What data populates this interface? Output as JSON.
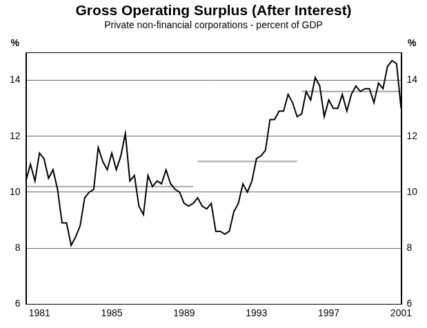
{
  "chart_data": {
    "type": "line",
    "title": "Gross Operating Surplus (After Interest)",
    "subtitle": "Private non-financial corporations - percent of GDP",
    "ylabel": "%",
    "y2label": "%",
    "categories": [
      null,
      null,
      null,
      "1981",
      null,
      null,
      null,
      null,
      null,
      null,
      null,
      null,
      null,
      null,
      null,
      null,
      null,
      null,
      null,
      "1985",
      null,
      null,
      null,
      null,
      null,
      null,
      null,
      null,
      null,
      null,
      null,
      null,
      null,
      null,
      null,
      "1989",
      null,
      null,
      null,
      null,
      null,
      null,
      null,
      null,
      null,
      null,
      null,
      null,
      null,
      null,
      null,
      "1993",
      null,
      null,
      null,
      null,
      null,
      null,
      null,
      null,
      null,
      null,
      null,
      null,
      null,
      null,
      null,
      "1997",
      null,
      null,
      null,
      null,
      null,
      null,
      null,
      null,
      null,
      null,
      null,
      null,
      null,
      null,
      null,
      "2001"
    ],
    "series": [
      {
        "color": "#000000",
        "line_style": "solid",
        "values": [
          10.4,
          11.0,
          10.4,
          11.4,
          11.2,
          10.5,
          10.8,
          10.1,
          8.9,
          8.9,
          8.1,
          8.4,
          8.8,
          9.8,
          10.0,
          10.1,
          11.6,
          11.1,
          10.8,
          11.4,
          10.8,
          11.3,
          12.1,
          10.4,
          10.6,
          9.5,
          9.2,
          10.6,
          10.2,
          10.4,
          10.3,
          10.8,
          10.3,
          10.1,
          10.0,
          9.6,
          9.5,
          9.6,
          9.8,
          9.5,
          9.4,
          9.6,
          8.6,
          8.6,
          8.5,
          8.6,
          9.3,
          9.6,
          10.3,
          10.0,
          10.4,
          11.2,
          11.3,
          11.5,
          12.6,
          12.6,
          12.9,
          12.9,
          13.5,
          13.2,
          12.7,
          12.8,
          13.6,
          13.3,
          14.1,
          13.8,
          12.7,
          13.3,
          13.0,
          13.0,
          13.5,
          12.9,
          13.5,
          13.8,
          13.6,
          13.7,
          13.7,
          13.2,
          13.9,
          13.7,
          14.5,
          14.7,
          14.6,
          13.0
        ]
      },
      {
        "color": "#a6a6a6",
        "line_style": "solid",
        "values": [
          10.2,
          10.2,
          10.2,
          10.2,
          10.2,
          10.2,
          10.2,
          10.2,
          10.2,
          10.2,
          10.2,
          10.2,
          10.2,
          10.2,
          10.2,
          10.2,
          10.2,
          10.2,
          10.2,
          10.2,
          10.2,
          10.2,
          10.2,
          10.2,
          10.2,
          10.2,
          10.2,
          10.2,
          10.2,
          10.2,
          10.2,
          10.2,
          10.2,
          10.2,
          10.2,
          10.2,
          10.2,
          10.2,
          null,
          null,
          null,
          null,
          null,
          null,
          null,
          null,
          null,
          null,
          null,
          null,
          null,
          null,
          null,
          null,
          null,
          null,
          null,
          null,
          null,
          null,
          null,
          null,
          null,
          null,
          null,
          null,
          null,
          null,
          null,
          null,
          null,
          null,
          null,
          null,
          null,
          null,
          null,
          null,
          null,
          null,
          null,
          null,
          null,
          null
        ]
      },
      {
        "color": "#a6a6a6",
        "line_style": "solid",
        "values": [
          null,
          null,
          null,
          null,
          null,
          null,
          null,
          null,
          null,
          null,
          null,
          null,
          null,
          null,
          null,
          null,
          null,
          null,
          null,
          null,
          null,
          null,
          null,
          null,
          null,
          null,
          null,
          null,
          null,
          null,
          null,
          null,
          null,
          null,
          null,
          null,
          null,
          null,
          11.1,
          11.1,
          11.1,
          11.1,
          11.1,
          11.1,
          11.1,
          11.1,
          11.1,
          11.1,
          11.1,
          11.1,
          11.1,
          11.1,
          11.1,
          11.1,
          11.1,
          11.1,
          11.1,
          11.1,
          11.1,
          11.1,
          11.1,
          null,
          null,
          null,
          null,
          null,
          null,
          null,
          null,
          null,
          null,
          null,
          null,
          null,
          null,
          null,
          null,
          null,
          null,
          null,
          null,
          null,
          null,
          null
        ]
      },
      {
        "color": "#a6a6a6",
        "line_style": "solid",
        "values": [
          null,
          null,
          null,
          null,
          null,
          null,
          null,
          null,
          null,
          null,
          null,
          null,
          null,
          null,
          null,
          null,
          null,
          null,
          null,
          null,
          null,
          null,
          null,
          null,
          null,
          null,
          null,
          null,
          null,
          null,
          null,
          null,
          null,
          null,
          null,
          null,
          null,
          null,
          null,
          null,
          null,
          null,
          null,
          null,
          null,
          null,
          null,
          null,
          null,
          null,
          null,
          null,
          null,
          null,
          null,
          null,
          null,
          null,
          null,
          null,
          null,
          13.6,
          13.6,
          13.6,
          13.6,
          13.6,
          13.6,
          13.6,
          13.6,
          13.6,
          13.6,
          13.6,
          13.6,
          13.6,
          13.6,
          13.6,
          13.6,
          13.6,
          13.6,
          13.6,
          13.6,
          13.6,
          13.6,
          13.6
        ]
      }
    ],
    "ylim": [
      6,
      15
    ],
    "yticks": [
      6,
      8,
      10,
      12,
      14
    ],
    "y2lim": [
      6,
      15
    ],
    "y2ticks": [
      6,
      8,
      10,
      12,
      14
    ],
    "grid": true
  }
}
